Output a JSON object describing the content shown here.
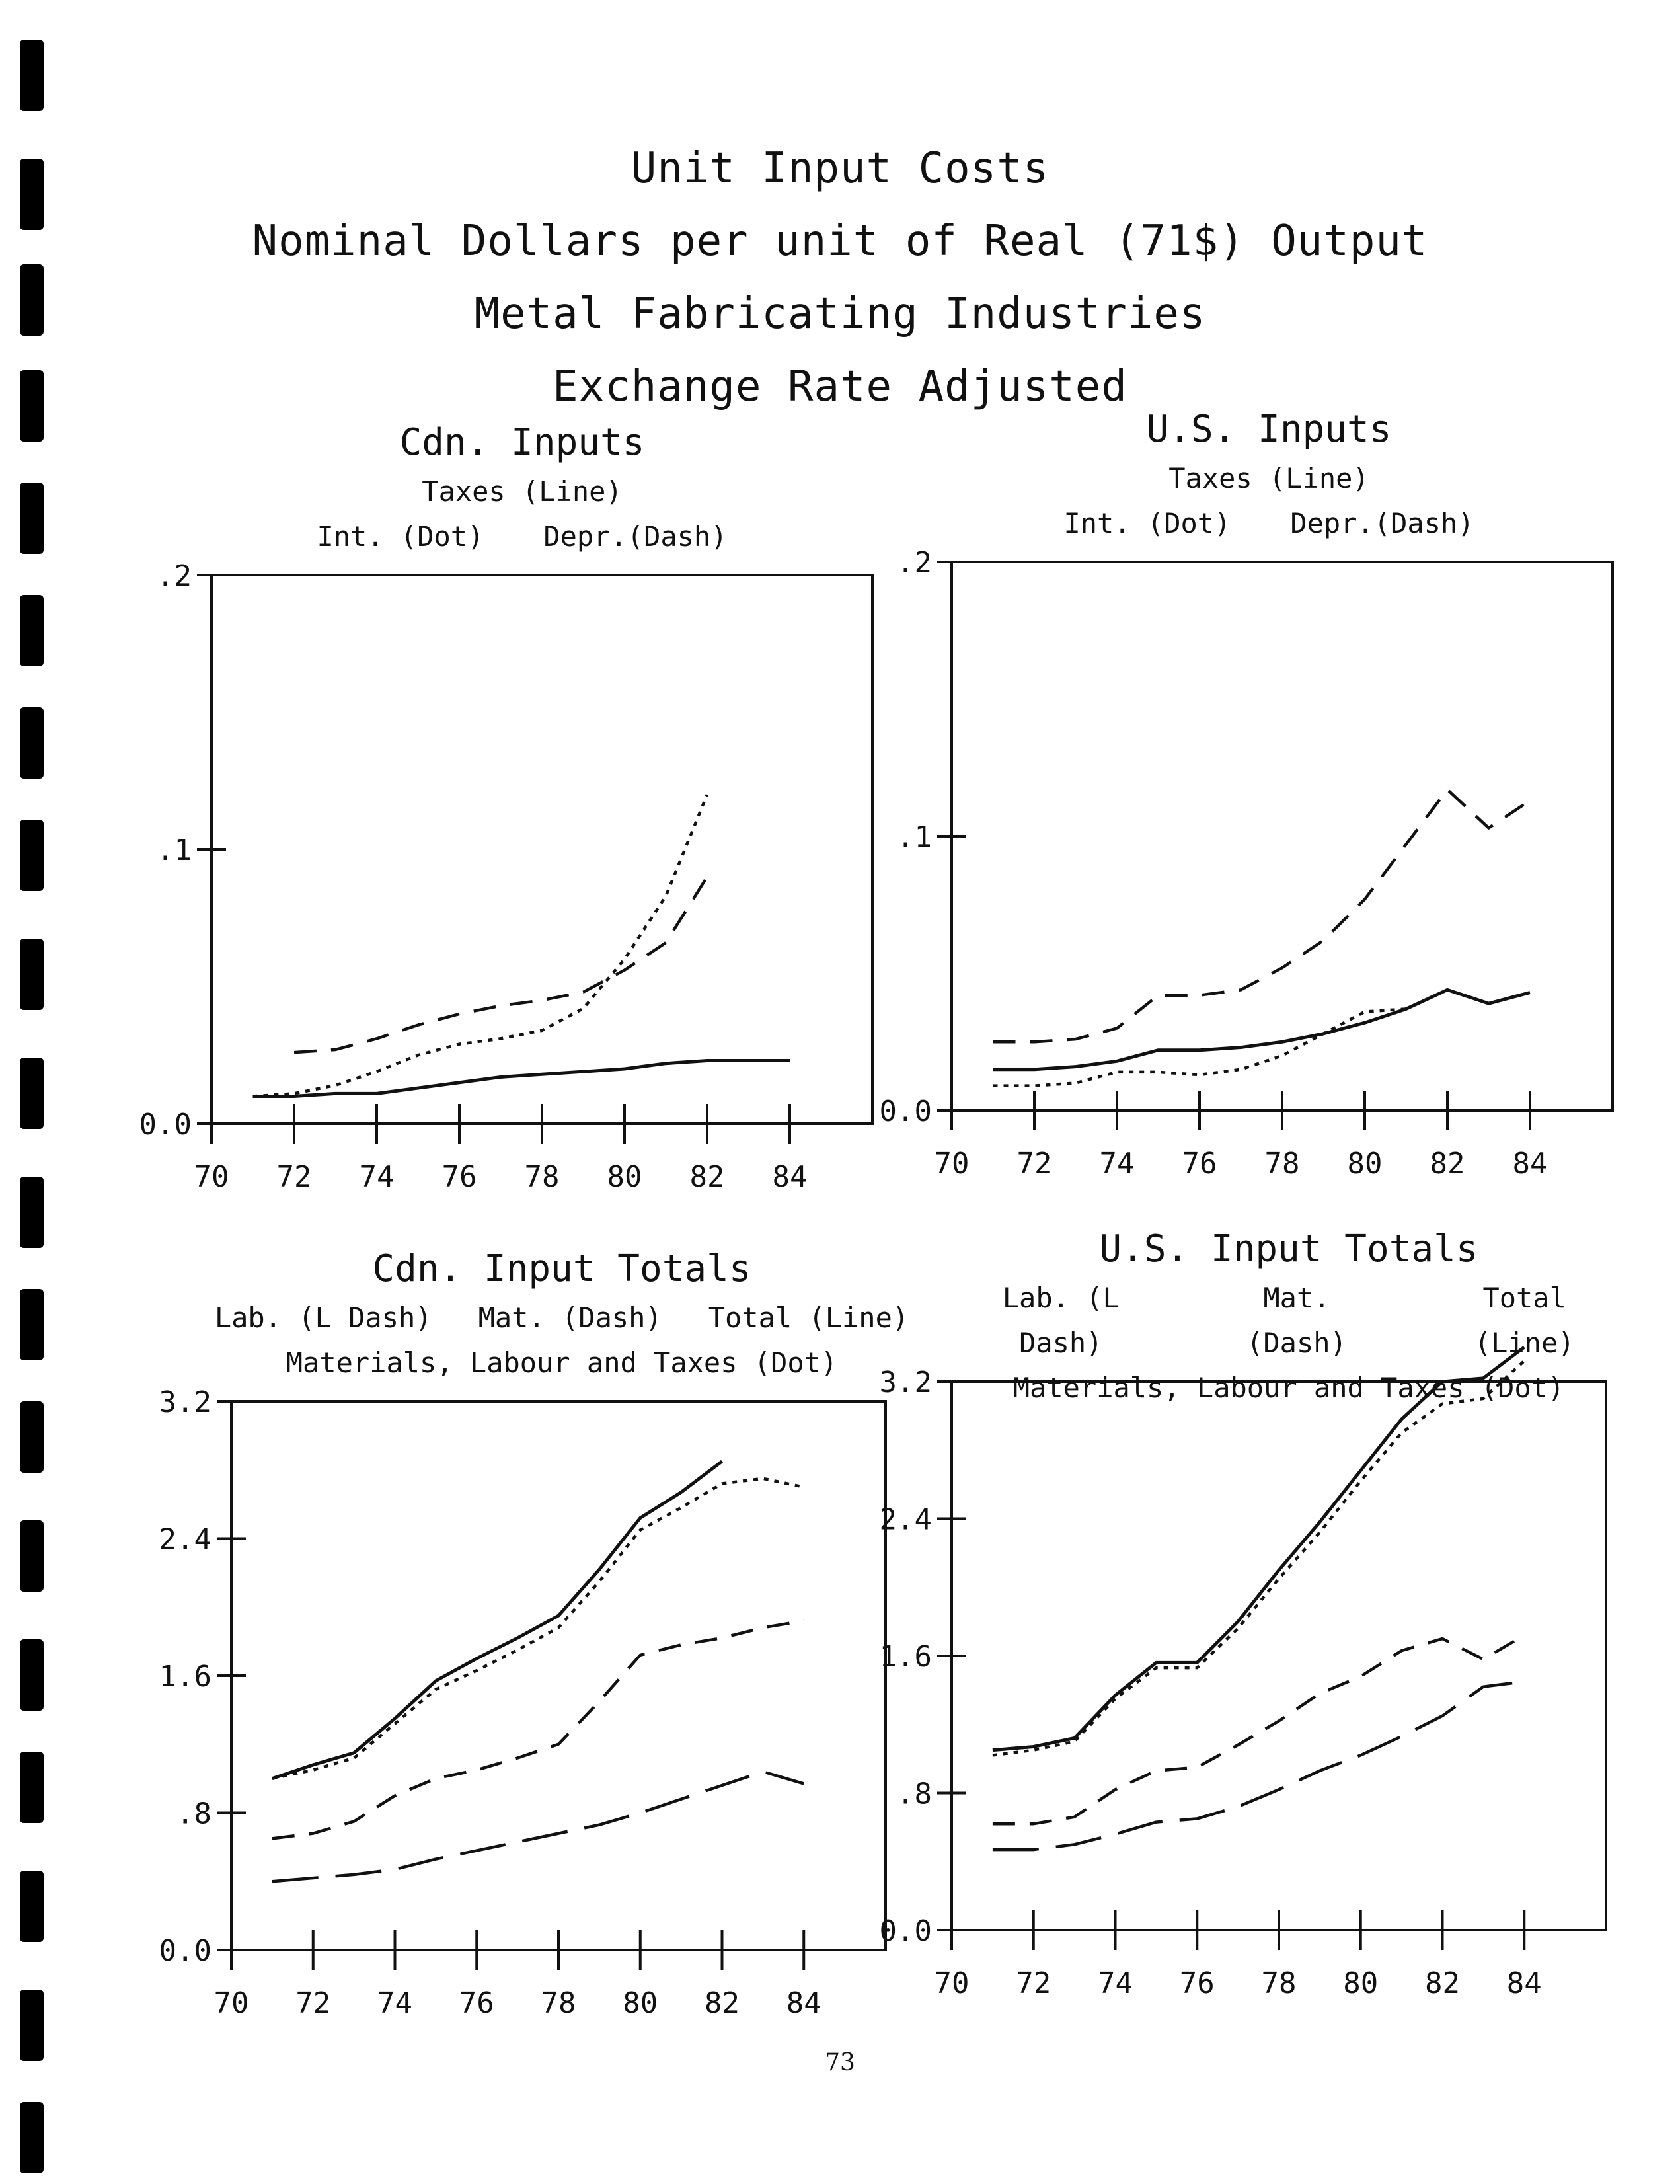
{
  "page": {
    "titles": [
      "Unit Input Costs",
      "Nominal Dollars per unit of Real (71$) Output",
      "Metal Fabricating Industries",
      "Exchange Rate Adjusted"
    ],
    "page_number": "73"
  },
  "chart_data": [
    {
      "type": "line",
      "title": "Cdn. Inputs",
      "legend": [
        "Taxes (Line)",
        "Int. (Dot)",
        "Depr.(Dash)"
      ],
      "ylim": [
        0,
        0.2
      ],
      "yticks": [
        0,
        0.1,
        0.2
      ],
      "ytick_labels": [
        "0.0",
        ".1",
        ".2"
      ],
      "xlim": [
        70,
        86
      ],
      "xticks": [
        70,
        72,
        74,
        76,
        78,
        80,
        82,
        84
      ],
      "xtick_labels": [
        "70",
        "72",
        "74",
        "76",
        "78",
        "80",
        "82",
        "84"
      ],
      "series": [
        {
          "name": "Taxes",
          "style": "line",
          "x": [
            71,
            72,
            73,
            74,
            75,
            76,
            77,
            78,
            79,
            80,
            81,
            82,
            83,
            84
          ],
          "values": [
            0.01,
            0.01,
            0.011,
            0.011,
            0.013,
            0.015,
            0.017,
            0.018,
            0.019,
            0.02,
            0.022,
            0.023,
            0.023,
            0.023
          ]
        },
        {
          "name": "Int.",
          "style": "dot",
          "x": [
            71,
            72,
            73,
            74,
            75,
            76,
            77,
            78,
            79,
            80,
            81,
            82
          ],
          "values": [
            0.01,
            0.011,
            0.014,
            0.019,
            0.025,
            0.029,
            0.031,
            0.034,
            0.042,
            0.06,
            0.083,
            0.12
          ]
        },
        {
          "name": "Depr.",
          "style": "dash",
          "x": [
            72,
            73,
            74,
            75,
            76,
            77,
            78,
            79,
            80,
            81,
            82
          ],
          "values": [
            0.026,
            0.027,
            0.031,
            0.036,
            0.04,
            0.043,
            0.045,
            0.048,
            0.056,
            0.066,
            0.09
          ]
        }
      ]
    },
    {
      "type": "line",
      "title": "U.S. Inputs",
      "legend": [
        "Taxes (Line)",
        "Int. (Dot)",
        "Depr.(Dash)"
      ],
      "ylim": [
        0,
        0.2
      ],
      "yticks": [
        0,
        0.1,
        0.2
      ],
      "ytick_labels": [
        "0.0",
        ".1",
        ".2"
      ],
      "xlim": [
        70,
        86
      ],
      "xticks": [
        70,
        72,
        74,
        76,
        78,
        80,
        82,
        84
      ],
      "xtick_labels": [
        "70",
        "72",
        "74",
        "76",
        "78",
        "80",
        "82",
        "84"
      ],
      "series": [
        {
          "name": "Taxes",
          "style": "line",
          "x": [
            71,
            72,
            73,
            74,
            75,
            76,
            77,
            78,
            79,
            80,
            81,
            82,
            83,
            84
          ],
          "values": [
            0.015,
            0.015,
            0.016,
            0.018,
            0.022,
            0.022,
            0.023,
            0.025,
            0.028,
            0.032,
            0.037,
            0.044,
            0.039,
            0.043
          ]
        },
        {
          "name": "Int.",
          "style": "dot",
          "x": [
            71,
            72,
            73,
            74,
            75,
            76,
            77,
            78,
            79,
            80,
            81
          ],
          "values": [
            0.009,
            0.009,
            0.01,
            0.014,
            0.014,
            0.013,
            0.015,
            0.02,
            0.028,
            0.036,
            0.037
          ]
        },
        {
          "name": "Depr.",
          "style": "dash",
          "x": [
            71,
            72,
            73,
            74,
            75,
            76,
            77,
            78,
            79,
            80,
            81,
            82,
            83,
            84
          ],
          "values": [
            0.025,
            0.025,
            0.026,
            0.03,
            0.042,
            0.042,
            0.044,
            0.052,
            0.062,
            0.077,
            0.097,
            0.117,
            0.103,
            0.113
          ]
        }
      ]
    },
    {
      "type": "line",
      "title": "Cdn. Input Totals",
      "legend": [
        "Lab. (L Dash)",
        "Mat. (Dash)",
        "Total (Line)",
        "Materials, Labour and Taxes (Dot)"
      ],
      "ylim": [
        0,
        3.2
      ],
      "yticks": [
        0,
        0.8,
        1.6,
        2.4,
        3.2
      ],
      "ytick_labels": [
        "0.0",
        ".8",
        "1.6",
        "2.4",
        "3.2"
      ],
      "xlim": [
        70,
        86
      ],
      "xticks": [
        70,
        72,
        74,
        76,
        78,
        80,
        82,
        84
      ],
      "xtick_labels": [
        "70",
        "72",
        "74",
        "76",
        "78",
        "80",
        "82",
        "84"
      ],
      "series": [
        {
          "name": "Lab.",
          "style": "ldash",
          "x": [
            71,
            72,
            73,
            74,
            75,
            76,
            77,
            78,
            79,
            80,
            81,
            82,
            83,
            84
          ],
          "values": [
            0.4,
            0.42,
            0.44,
            0.47,
            0.53,
            0.58,
            0.63,
            0.68,
            0.73,
            0.8,
            0.88,
            0.96,
            1.04,
            0.97
          ]
        },
        {
          "name": "Mat.",
          "style": "dash",
          "x": [
            71,
            72,
            73,
            74,
            75,
            76,
            77,
            78,
            79,
            80,
            81,
            82,
            83,
            84
          ],
          "values": [
            0.65,
            0.68,
            0.75,
            0.9,
            1.0,
            1.05,
            1.12,
            1.2,
            1.45,
            1.72,
            1.78,
            1.82,
            1.88,
            1.92
          ]
        },
        {
          "name": "Total",
          "style": "line",
          "x": [
            71,
            72,
            73,
            74,
            75,
            76,
            77,
            78,
            79,
            80,
            81,
            82
          ],
          "values": [
            1.0,
            1.08,
            1.15,
            1.35,
            1.57,
            1.7,
            1.82,
            1.95,
            2.22,
            2.52,
            2.67,
            2.85
          ]
        },
        {
          "name": "Materials, Labour and Taxes",
          "style": "dot",
          "x": [
            71,
            72,
            73,
            74,
            75,
            76,
            77,
            78,
            79,
            80,
            81,
            82,
            83,
            84
          ],
          "values": [
            1.0,
            1.05,
            1.12,
            1.32,
            1.52,
            1.63,
            1.75,
            1.88,
            2.15,
            2.45,
            2.58,
            2.72,
            2.75,
            2.7
          ]
        }
      ]
    },
    {
      "type": "line",
      "title": "U.S. Input Totals",
      "legend": [
        "Lab. (L Dash)",
        "Mat. (Dash)",
        "Total (Line)",
        "Materials, Labour and Taxes (Dot)"
      ],
      "ylim": [
        0,
        3.2
      ],
      "yticks": [
        0,
        0.8,
        1.6,
        2.4,
        3.2
      ],
      "ytick_labels": [
        "0.0",
        ".8",
        "1.6",
        "2.4",
        "3.2"
      ],
      "xlim": [
        70,
        86
      ],
      "xticks": [
        70,
        72,
        74,
        76,
        78,
        80,
        82,
        84
      ],
      "xtick_labels": [
        "70",
        "72",
        "74",
        "76",
        "78",
        "80",
        "82",
        "84"
      ],
      "series": [
        {
          "name": "Lab.",
          "style": "ldash",
          "x": [
            71,
            72,
            73,
            74,
            75,
            76,
            77,
            78,
            79,
            80,
            81,
            82,
            83,
            84
          ],
          "values": [
            0.47,
            0.47,
            0.5,
            0.56,
            0.63,
            0.65,
            0.72,
            0.82,
            0.93,
            1.02,
            1.13,
            1.25,
            1.42,
            1.45
          ]
        },
        {
          "name": "Mat.",
          "style": "dash",
          "x": [
            71,
            72,
            73,
            74,
            75,
            76,
            77,
            78,
            79,
            80,
            81,
            82,
            83,
            84
          ],
          "values": [
            0.62,
            0.62,
            0.66,
            0.82,
            0.93,
            0.95,
            1.08,
            1.22,
            1.38,
            1.48,
            1.63,
            1.7,
            1.58,
            1.72
          ]
        },
        {
          "name": "Total",
          "style": "line",
          "x": [
            71,
            72,
            73,
            74,
            75,
            76,
            77,
            78,
            79,
            80,
            81,
            82,
            83,
            84
          ],
          "values": [
            1.05,
            1.07,
            1.12,
            1.37,
            1.56,
            1.56,
            1.8,
            2.1,
            2.38,
            2.68,
            2.98,
            3.2,
            3.22,
            3.4
          ]
        },
        {
          "name": "Materials, Labour and Taxes",
          "style": "dot",
          "x": [
            71,
            72,
            73,
            74,
            75,
            76,
            77,
            78,
            79,
            80,
            81,
            82,
            83,
            84
          ],
          "values": [
            1.02,
            1.05,
            1.1,
            1.35,
            1.53,
            1.53,
            1.76,
            2.05,
            2.32,
            2.62,
            2.9,
            3.07,
            3.1,
            3.32
          ]
        }
      ]
    }
  ]
}
